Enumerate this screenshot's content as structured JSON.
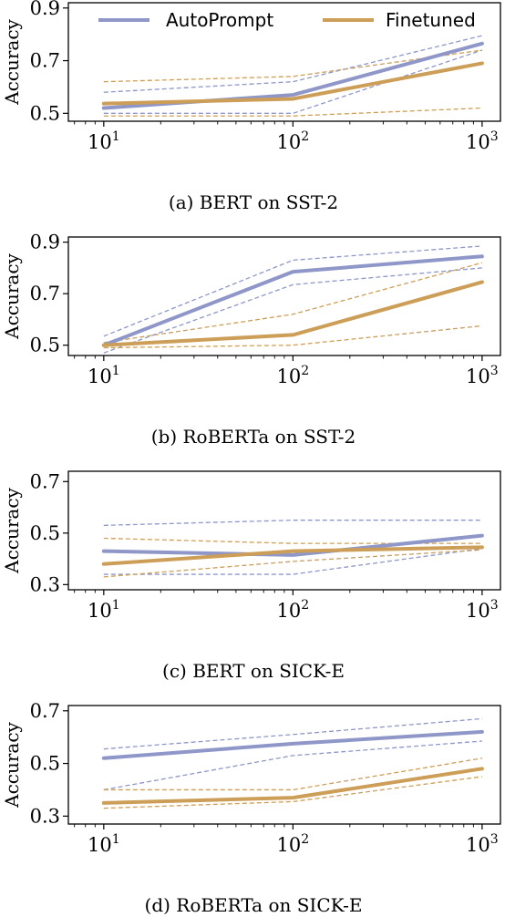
{
  "colors": {
    "autoprompt": "#8e97c8",
    "finetuned": "#cc9e57"
  },
  "legend": {
    "series": [
      "AutoPrompt",
      "Finetuned"
    ]
  },
  "chart_data": [
    {
      "type": "line",
      "caption": "(a) BERT on SST-2",
      "ylabel": "Accuracy",
      "x": [
        10,
        100,
        1000
      ],
      "xscale": "log",
      "xlim": [
        6.5,
        1250
      ],
      "ylim": [
        0.47,
        0.92
      ],
      "yticks": [
        0.5,
        0.7,
        0.9
      ],
      "ytick_labels": [
        "0.5",
        "0.7",
        "0.9"
      ],
      "xtick_labels": [
        "10",
        "10",
        "10"
      ],
      "xtick_exponents": [
        "1",
        "2",
        "3"
      ],
      "series": [
        {
          "name": "AutoPrompt",
          "values": [
            0.52,
            0.57,
            0.765
          ],
          "upper": [
            0.58,
            0.62,
            0.795
          ],
          "lower": [
            0.5,
            0.5,
            0.74
          ]
        },
        {
          "name": "Finetuned",
          "values": [
            0.537,
            0.555,
            0.69
          ],
          "upper": [
            0.62,
            0.64,
            0.74
          ],
          "lower": [
            0.49,
            0.49,
            0.52
          ]
        }
      ]
    },
    {
      "type": "line",
      "caption": "(b) RoBERTa on SST-2",
      "ylabel": "Accuracy",
      "x": [
        10,
        100,
        1000
      ],
      "xscale": "log",
      "xlim": [
        6.5,
        1250
      ],
      "ylim": [
        0.46,
        0.92
      ],
      "yticks": [
        0.5,
        0.7,
        0.9
      ],
      "ytick_labels": [
        "0.5",
        "0.7",
        "0.9"
      ],
      "xtick_labels": [
        "10",
        "10",
        "10"
      ],
      "xtick_exponents": [
        "1",
        "2",
        "3"
      ],
      "series": [
        {
          "name": "AutoPrompt",
          "values": [
            0.5,
            0.785,
            0.845
          ],
          "upper": [
            0.535,
            0.83,
            0.885
          ],
          "lower": [
            0.47,
            0.735,
            0.8
          ]
        },
        {
          "name": "Finetuned",
          "values": [
            0.5,
            0.54,
            0.745
          ],
          "upper": [
            0.51,
            0.62,
            0.82
          ],
          "lower": [
            0.49,
            0.5,
            0.575
          ]
        }
      ]
    },
    {
      "type": "line",
      "caption": "(c) BERT on SICK-E",
      "ylabel": "Accuracy",
      "x": [
        10,
        100,
        1000
      ],
      "xscale": "log",
      "xlim": [
        6.5,
        1250
      ],
      "ylim": [
        0.28,
        0.74
      ],
      "yticks": [
        0.3,
        0.5,
        0.7
      ],
      "ytick_labels": [
        "0.3",
        "0.5",
        "0.7"
      ],
      "xtick_labels": [
        "10",
        "10",
        "10"
      ],
      "xtick_exponents": [
        "1",
        "2",
        "3"
      ],
      "series": [
        {
          "name": "AutoPrompt",
          "values": [
            0.43,
            0.415,
            0.49
          ],
          "upper": [
            0.53,
            0.55,
            0.55
          ],
          "lower": [
            0.34,
            0.34,
            0.44
          ]
        },
        {
          "name": "Finetuned",
          "values": [
            0.38,
            0.43,
            0.445
          ],
          "upper": [
            0.48,
            0.46,
            0.46
          ],
          "lower": [
            0.33,
            0.39,
            0.435
          ]
        }
      ]
    },
    {
      "type": "line",
      "caption": "(d) RoBERTa on SICK-E",
      "ylabel": "Accuracy",
      "x": [
        10,
        100,
        1000
      ],
      "xscale": "log",
      "xlim": [
        6.5,
        1250
      ],
      "ylim": [
        0.27,
        0.72
      ],
      "yticks": [
        0.3,
        0.5,
        0.7
      ],
      "ytick_labels": [
        "0.3",
        "0.5",
        "0.7"
      ],
      "xtick_labels": [
        "10",
        "10",
        "10"
      ],
      "xtick_exponents": [
        "1",
        "2",
        "3"
      ],
      "series": [
        {
          "name": "AutoPrompt",
          "values": [
            0.52,
            0.575,
            0.62
          ],
          "upper": [
            0.555,
            0.61,
            0.67
          ],
          "lower": [
            0.4,
            0.53,
            0.585
          ]
        },
        {
          "name": "Finetuned",
          "values": [
            0.35,
            0.37,
            0.48
          ],
          "upper": [
            0.4,
            0.4,
            0.52
          ],
          "lower": [
            0.33,
            0.355,
            0.45
          ]
        }
      ]
    }
  ]
}
